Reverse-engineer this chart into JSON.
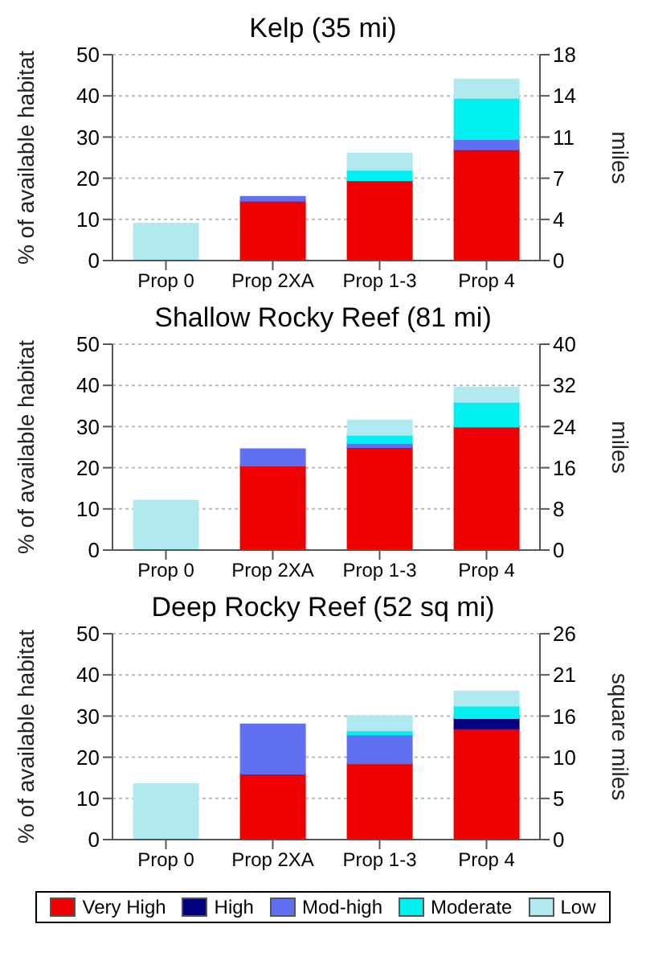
{
  "chart_data": [
    {
      "type": "bar",
      "title": "Kelp (35 mi)",
      "ylabel": "% of available habitat",
      "y2label": "miles",
      "categories": [
        "Prop 0",
        "Prop 2XA",
        "Prop 1-3",
        "Prop 4"
      ],
      "stacked": true,
      "grid": "y",
      "legend": false,
      "ylim": [
        0,
        50
      ],
      "yticks": [
        0,
        10,
        20,
        30,
        40,
        50
      ],
      "y2lim": [
        0,
        17.5
      ],
      "y2ticks": [
        0,
        {
          "value": 3.5,
          "label": "4"
        },
        7,
        {
          "value": 10.5,
          "label": "11"
        },
        14,
        {
          "value": 17.5,
          "label": "18"
        }
      ],
      "series": [
        {
          "color": "#ee0000",
          "values": [
            0,
            14.5,
            19.5,
            27
          ]
        },
        {
          "color": "#000080",
          "values": [
            0,
            0,
            0,
            0
          ]
        },
        {
          "color": "#6070f0",
          "values": [
            0,
            1,
            0,
            2.5
          ]
        },
        {
          "color": "#00f0f0",
          "values": [
            0,
            0,
            2.5,
            10
          ]
        },
        {
          "color": "#b0eaee",
          "values": [
            9,
            0,
            4,
            4.5
          ]
        }
      ]
    },
    {
      "type": "bar",
      "title": "Shallow Rocky Reef (81 mi)",
      "ylabel": "% of available habitat",
      "y2label": "miles",
      "categories": [
        "Prop 0",
        "Prop 2XA",
        "Prop 1-3",
        "Prop 4"
      ],
      "stacked": true,
      "grid": "y",
      "legend": false,
      "ylim": [
        0,
        50
      ],
      "yticks": [
        0,
        10,
        20,
        30,
        40,
        50
      ],
      "y2lim": [
        0,
        40.5
      ],
      "y2ticks": [
        0,
        {
          "value": 8.1,
          "label": "8"
        },
        {
          "value": 16.2,
          "label": "16"
        },
        {
          "value": 24.3,
          "label": "24"
        },
        {
          "value": 32.4,
          "label": "32"
        },
        {
          "value": 40.5,
          "label": "40"
        }
      ],
      "series": [
        {
          "color": "#ee0000",
          "values": [
            0,
            20.5,
            25,
            30
          ]
        },
        {
          "color": "#000080",
          "values": [
            0,
            0,
            0,
            0
          ]
        },
        {
          "color": "#6070f0",
          "values": [
            0,
            4,
            1,
            0
          ]
        },
        {
          "color": "#00f0f0",
          "values": [
            0,
            0,
            2,
            6
          ]
        },
        {
          "color": "#b0eaee",
          "values": [
            12,
            0,
            3.5,
            3.5
          ]
        }
      ]
    },
    {
      "type": "bar",
      "title": "Deep Rocky Reef (52 sq mi)",
      "ylabel": "% of available habitat",
      "y2label": "square miles",
      "categories": [
        "Prop 0",
        "Prop 2XA",
        "Prop 1-3",
        "Prop 4"
      ],
      "stacked": true,
      "grid": "y",
      "legend": "bottom",
      "ylim": [
        0,
        50
      ],
      "yticks": [
        0,
        10,
        20,
        30,
        40,
        50
      ],
      "y2lim": [
        0,
        26
      ],
      "y2ticks": [
        0,
        {
          "value": 5.2,
          "label": "5"
        },
        {
          "value": 10.4,
          "label": "10"
        },
        {
          "value": 15.6,
          "label": "16"
        },
        {
          "value": 20.8,
          "label": "21"
        },
        26
      ],
      "series": [
        {
          "name": "Very High",
          "color": "#ee0000",
          "values": [
            0,
            16,
            18.5,
            27
          ]
        },
        {
          "name": "High",
          "color": "#000080",
          "values": [
            0,
            0,
            0,
            2.5
          ]
        },
        {
          "name": "Mod-high",
          "color": "#6070f0",
          "values": [
            0,
            12,
            7,
            0
          ]
        },
        {
          "name": "Moderate",
          "color": "#00f0f0",
          "values": [
            0,
            0,
            1,
            3
          ]
        },
        {
          "name": "Low",
          "color": "#b0eaee",
          "values": [
            13.5,
            0,
            3.5,
            3.5
          ]
        }
      ]
    }
  ]
}
